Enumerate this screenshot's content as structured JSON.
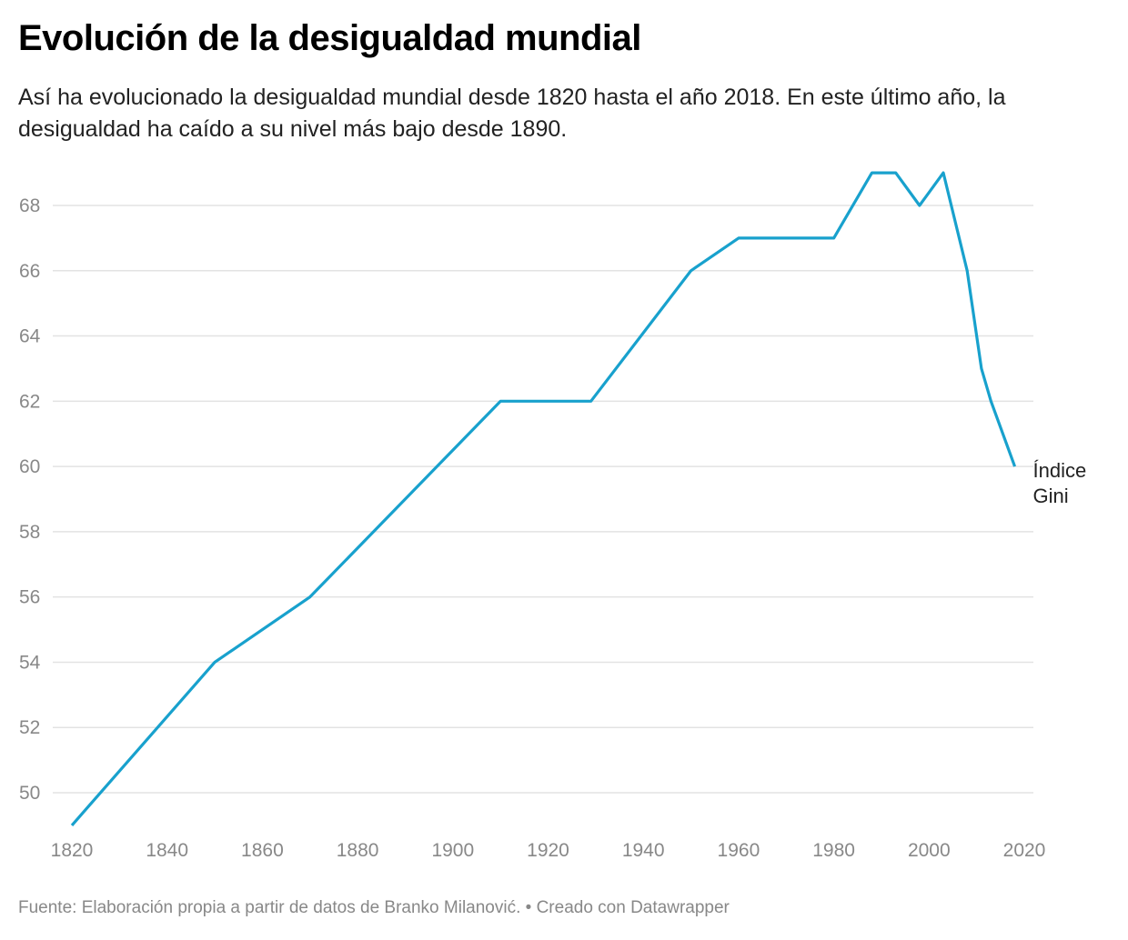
{
  "title": "Evolución de la desigualdad mundial",
  "subtitle": "Así ha evolucionado la desigualdad mundial desde 1820 hasta el año 2018. En este último año, la desigualdad ha caído a su nivel más bajo desde 1890.",
  "source": "Fuente: Elaboración propia a partir de datos de Branko Milanović. • Creado con Datawrapper",
  "chart_data": {
    "type": "line",
    "xlim": [
      1820,
      2020
    ],
    "ylim": [
      49,
      69
    ],
    "grid": true,
    "x_ticks": [
      1820,
      1840,
      1860,
      1880,
      1900,
      1920,
      1940,
      1960,
      1980,
      2000,
      2020
    ],
    "y_ticks": [
      50,
      52,
      54,
      56,
      58,
      60,
      62,
      64,
      66,
      68
    ],
    "series": [
      {
        "name": "Índice Gini",
        "color": "#18a1cd",
        "x": [
          1820,
          1850,
          1870,
          1910,
          1929,
          1950,
          1960,
          1980,
          1988,
          1993,
          1998,
          2003,
          2008,
          2011,
          2013,
          2018
        ],
        "y": [
          49,
          54,
          56,
          62,
          62,
          66,
          67,
          67,
          69,
          69,
          68,
          69,
          66,
          63,
          62,
          60
        ]
      }
    ]
  }
}
